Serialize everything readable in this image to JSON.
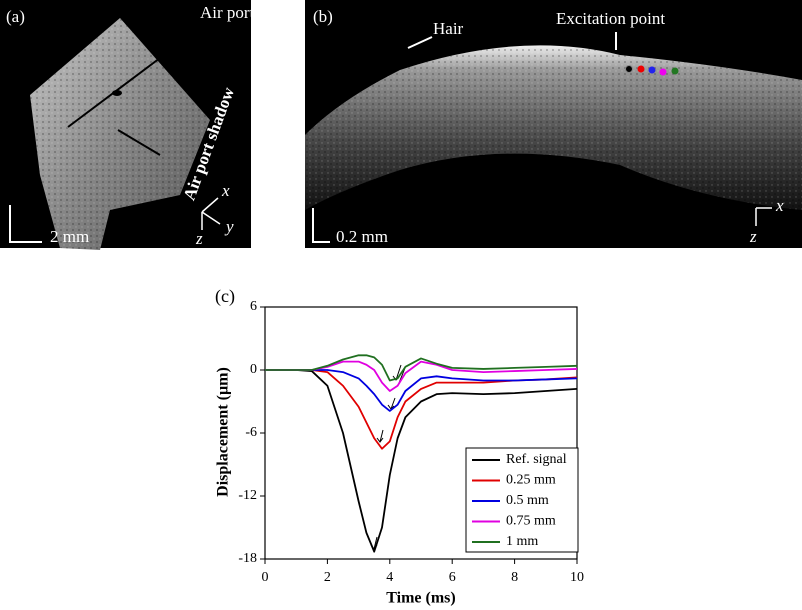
{
  "panel_a": {
    "label": "(a)",
    "air_port": "Air port",
    "shadow": "Air port shadow",
    "scale": "2 mm",
    "axis_x": "x",
    "axis_y": "y",
    "axis_z": "z"
  },
  "panel_b": {
    "label": "(b)",
    "hair": "Hair",
    "excitation": "Excitation point",
    "scale": "0.2 mm",
    "axis_x": "x",
    "axis_z": "z"
  },
  "chart_data": {
    "type": "line",
    "panel_label": "(c)",
    "x_label": "Time (ms)",
    "y_label": "Displacement (µm)",
    "x": [
      0,
      1,
      1.5,
      2,
      2.5,
      3,
      3.25,
      3.5,
      3.75,
      4,
      4.25,
      4.5,
      5,
      5.5,
      6,
      7,
      8,
      9,
      10
    ],
    "series": [
      {
        "name": "Ref. signal",
        "color": "#000000",
        "values": [
          0,
          0,
          -0.1,
          -1.5,
          -6,
          -12.5,
          -15.5,
          -17.3,
          -15,
          -10,
          -6.5,
          -4.5,
          -3,
          -2.3,
          -2.2,
          -2.3,
          -2.2,
          -2,
          -1.8
        ]
      },
      {
        "name": "0.25 mm",
        "color": "#e00000",
        "values": [
          0,
          0,
          0,
          -0.2,
          -1.5,
          -3.5,
          -5,
          -6.5,
          -7.5,
          -6.8,
          -4.5,
          -3,
          -1.8,
          -1.2,
          -1.2,
          -1.2,
          -1,
          -0.9,
          -0.7
        ]
      },
      {
        "name": "0.5 mm",
        "color": "#0000e0",
        "values": [
          0,
          0,
          0,
          0,
          -0.2,
          -0.8,
          -1.5,
          -2.3,
          -3.3,
          -3.9,
          -3.3,
          -2,
          -0.8,
          -0.6,
          -0.8,
          -1,
          -1,
          -0.9,
          -0.8
        ]
      },
      {
        "name": "0.75 mm",
        "color": "#e000e0",
        "values": [
          0,
          0,
          0,
          0.3,
          0.8,
          0.8,
          0.5,
          0,
          -1.2,
          -2,
          -1.5,
          -0.3,
          0.8,
          0.5,
          0,
          -0.2,
          -0.1,
          0,
          0.1
        ]
      },
      {
        "name": "1 mm",
        "color": "#207020",
        "values": [
          0,
          0,
          0,
          0.4,
          1,
          1.4,
          1.4,
          1.2,
          0.5,
          -1,
          -0.8,
          0.3,
          1.1,
          0.6,
          0.2,
          0.1,
          0.2,
          0.3,
          0.4
        ]
      }
    ],
    "xlim": [
      0,
      10
    ],
    "xticks": [
      0,
      2,
      4,
      6,
      8,
      10
    ],
    "ylim": [
      -18,
      6
    ],
    "yticks": [
      -18,
      -12,
      -6,
      0,
      6
    ]
  }
}
